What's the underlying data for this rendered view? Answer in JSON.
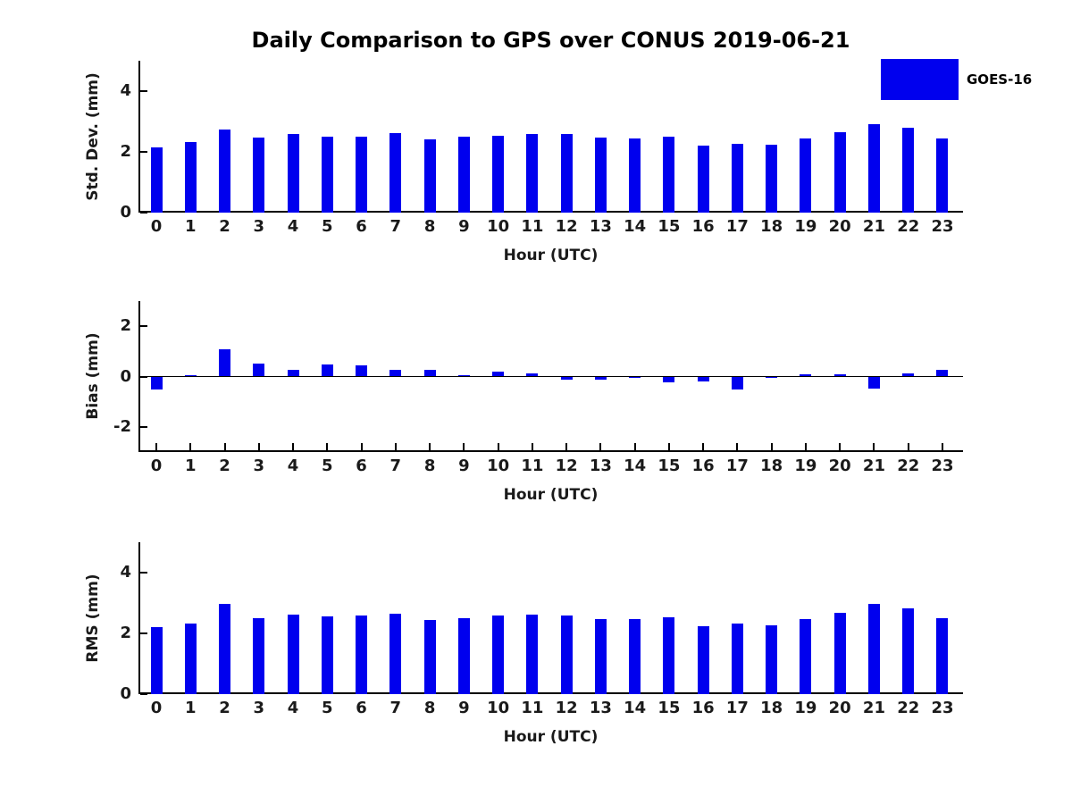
{
  "title": "Daily Comparison to GPS over CONUS 2019-06-21",
  "legend": {
    "label": "GOES-16"
  },
  "colors": {
    "bar": "#0000EE",
    "axis": "#000000",
    "text": "#1a1a1a"
  },
  "chart_data": [
    {
      "type": "bar",
      "ylabel": "Std. Dev. (mm)",
      "xlabel": "Hour (UTC)",
      "categories": [
        "0",
        "1",
        "2",
        "3",
        "4",
        "5",
        "6",
        "7",
        "8",
        "9",
        "10",
        "11",
        "12",
        "13",
        "14",
        "15",
        "16",
        "17",
        "18",
        "19",
        "20",
        "21",
        "22",
        "23"
      ],
      "values": [
        2.15,
        2.32,
        2.73,
        2.46,
        2.58,
        2.5,
        2.51,
        2.62,
        2.42,
        2.5,
        2.53,
        2.58,
        2.58,
        2.47,
        2.44,
        2.5,
        2.21,
        2.27,
        2.24,
        2.44,
        2.65,
        2.91,
        2.8,
        2.45
      ],
      "ylim": [
        0,
        5
      ],
      "yticks": [
        0,
        2,
        4
      ],
      "legend_entry": "GOES-16",
      "grid": false
    },
    {
      "type": "bar",
      "ylabel": "Bias (mm)",
      "xlabel": "Hour (UTC)",
      "categories": [
        "0",
        "1",
        "2",
        "3",
        "4",
        "5",
        "6",
        "7",
        "8",
        "9",
        "10",
        "11",
        "12",
        "13",
        "14",
        "15",
        "16",
        "17",
        "18",
        "19",
        "20",
        "21",
        "22",
        "23"
      ],
      "values": [
        -0.52,
        0.06,
        1.07,
        0.53,
        0.27,
        0.48,
        0.45,
        0.28,
        0.27,
        0.05,
        0.2,
        0.12,
        -0.13,
        -0.13,
        -0.04,
        -0.24,
        -0.21,
        -0.53,
        -0.04,
        0.1,
        0.08,
        -0.47,
        0.14,
        0.26
      ],
      "ylim": [
        -3,
        3
      ],
      "yticks": [
        -2,
        0,
        2
      ],
      "legend_entry": "GOES-16",
      "grid": false
    },
    {
      "type": "bar",
      "ylabel": "RMS (mm)",
      "xlabel": "Hour (UTC)",
      "categories": [
        "0",
        "1",
        "2",
        "3",
        "4",
        "5",
        "6",
        "7",
        "8",
        "9",
        "10",
        "11",
        "12",
        "13",
        "14",
        "15",
        "16",
        "17",
        "18",
        "19",
        "20",
        "21",
        "22",
        "23"
      ],
      "values": [
        2.21,
        2.33,
        2.97,
        2.51,
        2.63,
        2.57,
        2.58,
        2.65,
        2.44,
        2.51,
        2.58,
        2.61,
        2.6,
        2.48,
        2.46,
        2.52,
        2.23,
        2.33,
        2.27,
        2.47,
        2.68,
        2.96,
        2.83,
        2.5
      ],
      "ylim": [
        0,
        5
      ],
      "yticks": [
        0,
        2,
        4
      ],
      "legend_entry": "GOES-16",
      "grid": false
    }
  ]
}
